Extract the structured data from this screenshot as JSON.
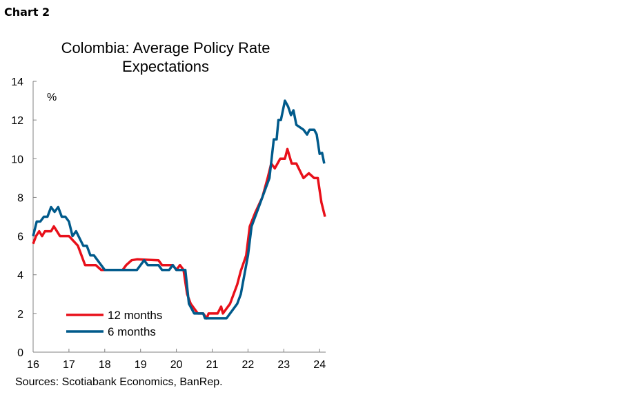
{
  "header": {
    "chart_label": "Chart 2"
  },
  "footer": {
    "source": "Sources: Scotiabank Economics, BanRep."
  },
  "chart_data": {
    "type": "line",
    "title": "Colombia: Average Policy Rate Expectations",
    "title_lines": [
      "Colombia: Average Policy Rate",
      "Expectations"
    ],
    "ylabel": "%",
    "xlabel": "",
    "xlim": [
      2016,
      2024.3
    ],
    "ylim": [
      0,
      14
    ],
    "x_ticks": [
      {
        "value": 2016,
        "label": "16"
      },
      {
        "value": 2017,
        "label": "17"
      },
      {
        "value": 2018,
        "label": "18"
      },
      {
        "value": 2019,
        "label": "19"
      },
      {
        "value": 2020,
        "label": "20"
      },
      {
        "value": 2021,
        "label": "21"
      },
      {
        "value": 2022,
        "label": "22"
      },
      {
        "value": 2023,
        "label": "23"
      },
      {
        "value": 2024,
        "label": "24"
      }
    ],
    "y_ticks": [
      0,
      2,
      4,
      6,
      8,
      10,
      12,
      14
    ],
    "grid": false,
    "legend_placement": "bottom-left",
    "series": [
      {
        "name": "12 months",
        "color": "#e8101a",
        "points": [
          [
            2016.0,
            5.6
          ],
          [
            2016.08,
            6.0
          ],
          [
            2016.17,
            6.25
          ],
          [
            2016.25,
            6.0
          ],
          [
            2016.33,
            6.25
          ],
          [
            2016.5,
            6.25
          ],
          [
            2016.58,
            6.5
          ],
          [
            2016.75,
            6.0
          ],
          [
            2017.0,
            6.0
          ],
          [
            2017.25,
            5.5
          ],
          [
            2017.35,
            5.0
          ],
          [
            2017.45,
            4.5
          ],
          [
            2017.75,
            4.5
          ],
          [
            2017.9,
            4.25
          ],
          [
            2018.5,
            4.25
          ],
          [
            2018.6,
            4.5
          ],
          [
            2018.75,
            4.75
          ],
          [
            2018.9,
            4.8
          ],
          [
            2019.5,
            4.75
          ],
          [
            2019.6,
            4.5
          ],
          [
            2019.9,
            4.5
          ],
          [
            2020.0,
            4.25
          ],
          [
            2020.1,
            4.5
          ],
          [
            2020.2,
            4.25
          ],
          [
            2020.3,
            3.0
          ],
          [
            2020.4,
            2.5
          ],
          [
            2020.6,
            2.0
          ],
          [
            2020.75,
            2.0
          ],
          [
            2020.85,
            1.75
          ],
          [
            2020.9,
            2.0
          ],
          [
            2021.15,
            2.0
          ],
          [
            2021.25,
            2.35
          ],
          [
            2021.3,
            2.0
          ],
          [
            2021.5,
            2.5
          ],
          [
            2021.6,
            3.0
          ],
          [
            2021.7,
            3.5
          ],
          [
            2021.8,
            4.2
          ],
          [
            2021.95,
            5.0
          ],
          [
            2022.05,
            6.5
          ],
          [
            2022.2,
            7.2
          ],
          [
            2022.4,
            8.0
          ],
          [
            2022.55,
            9.0
          ],
          [
            2022.65,
            9.75
          ],
          [
            2022.75,
            9.5
          ],
          [
            2022.9,
            10.0
          ],
          [
            2023.03,
            10.0
          ],
          [
            2023.1,
            10.5
          ],
          [
            2023.22,
            9.75
          ],
          [
            2023.35,
            9.75
          ],
          [
            2023.55,
            9.0
          ],
          [
            2023.7,
            9.25
          ],
          [
            2023.85,
            9.0
          ],
          [
            2023.95,
            9.0
          ],
          [
            2024.05,
            7.75
          ],
          [
            2024.15,
            7.0
          ]
        ]
      },
      {
        "name": "6 months",
        "color": "#005a8b",
        "points": [
          [
            2016.0,
            6.0
          ],
          [
            2016.1,
            6.75
          ],
          [
            2016.2,
            6.75
          ],
          [
            2016.3,
            7.0
          ],
          [
            2016.4,
            7.0
          ],
          [
            2016.5,
            7.5
          ],
          [
            2016.6,
            7.25
          ],
          [
            2016.7,
            7.5
          ],
          [
            2016.8,
            7.0
          ],
          [
            2016.9,
            7.0
          ],
          [
            2017.0,
            6.75
          ],
          [
            2017.1,
            6.0
          ],
          [
            2017.2,
            6.25
          ],
          [
            2017.4,
            5.5
          ],
          [
            2017.5,
            5.5
          ],
          [
            2017.6,
            5.0
          ],
          [
            2017.7,
            5.0
          ],
          [
            2017.8,
            4.75
          ],
          [
            2017.9,
            4.5
          ],
          [
            2018.0,
            4.25
          ],
          [
            2018.9,
            4.25
          ],
          [
            2019.0,
            4.5
          ],
          [
            2019.1,
            4.75
          ],
          [
            2019.2,
            4.5
          ],
          [
            2019.5,
            4.5
          ],
          [
            2019.6,
            4.25
          ],
          [
            2019.8,
            4.25
          ],
          [
            2019.9,
            4.5
          ],
          [
            2020.0,
            4.25
          ],
          [
            2020.25,
            4.25
          ],
          [
            2020.35,
            2.5
          ],
          [
            2020.5,
            2.0
          ],
          [
            2020.75,
            2.0
          ],
          [
            2020.8,
            1.75
          ],
          [
            2021.4,
            1.75
          ],
          [
            2021.7,
            2.5
          ],
          [
            2021.8,
            3.0
          ],
          [
            2022.0,
            5.0
          ],
          [
            2022.1,
            6.5
          ],
          [
            2022.3,
            7.5
          ],
          [
            2022.5,
            8.5
          ],
          [
            2022.6,
            9.0
          ],
          [
            2022.72,
            11.0
          ],
          [
            2022.8,
            11.0
          ],
          [
            2022.85,
            12.0
          ],
          [
            2022.92,
            12.0
          ],
          [
            2023.03,
            13.0
          ],
          [
            2023.12,
            12.7
          ],
          [
            2023.2,
            12.25
          ],
          [
            2023.27,
            12.5
          ],
          [
            2023.35,
            11.75
          ],
          [
            2023.55,
            11.5
          ],
          [
            2023.65,
            11.25
          ],
          [
            2023.72,
            11.5
          ],
          [
            2023.85,
            11.5
          ],
          [
            2023.92,
            11.25
          ],
          [
            2024.0,
            10.25
          ],
          [
            2024.07,
            10.3
          ],
          [
            2024.13,
            9.75
          ]
        ]
      }
    ]
  }
}
